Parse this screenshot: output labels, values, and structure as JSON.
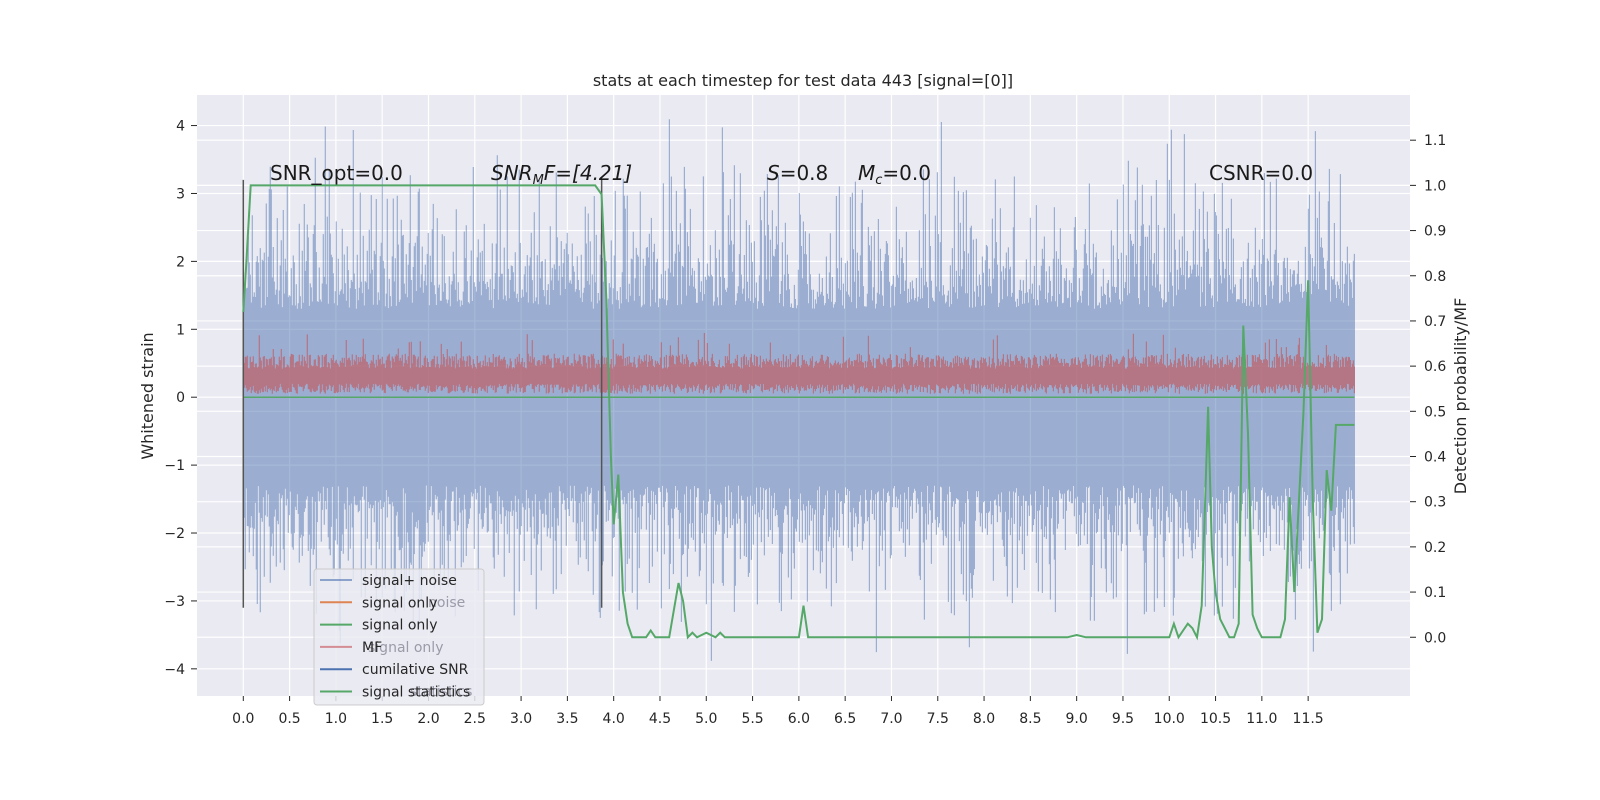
{
  "chart_data": {
    "type": "line",
    "title": "stats at each timestep for test data 443 [signal=[0]]",
    "ylabel_left": "Whitened strain",
    "ylabel_right": "Detection probability/MF",
    "xlim": [
      -0.5,
      12.6
    ],
    "ylim_left": [
      -4.4,
      4.45
    ],
    "ylim_right": [
      -0.13,
      1.2
    ],
    "x_ticks": [
      "0.0",
      "0.5",
      "1.0",
      "1.5",
      "2.0",
      "2.5",
      "3.0",
      "3.5",
      "4.0",
      "4.5",
      "5.0",
      "5.5",
      "6.0",
      "6.5",
      "7.0",
      "7.5",
      "8.0",
      "8.5",
      "9.0",
      "9.5",
      "10.0",
      "10.5",
      "11.0",
      "11.5"
    ],
    "y_ticks_left": [
      "4",
      "3",
      "2",
      "1",
      "0",
      "−1",
      "−2",
      "−3",
      "−4"
    ],
    "y_ticks_right": [
      "1.1",
      "1.0",
      "0.9",
      "0.8",
      "0.7",
      "0.6",
      "0.5",
      "0.4",
      "0.3",
      "0.2",
      "0.1",
      "0.0"
    ],
    "grid": true,
    "legend_position": "lower-left",
    "annotations": {
      "snr_opt": "SNR_opt=0.0",
      "snr_mf_sym": "SNR",
      "snr_mf_sub": "M",
      "snr_mf_rest": "F=[4.21]",
      "s_sym": "S",
      "s_rest": "=0.8",
      "mc_sym": "M",
      "mc_sub": "c",
      "mc_rest": "=0.0",
      "csnr": "CSNR=0.0"
    },
    "vertical_markers": [
      {
        "x": 0.0,
        "y": [
          -3.1,
          3.2
        ]
      },
      {
        "x": 3.87,
        "y": [
          -3.1,
          3.2
        ]
      }
    ],
    "series": [
      {
        "name": "signal+ noise",
        "color": "#4c72b0",
        "alpha": 0.5,
        "axis": "left",
        "description": "whitened noise spanning ~-2.5 to 2.6, spikes to ~4.1 / -4.0",
        "x_range": [
          0.0,
          12.0
        ]
      },
      {
        "name": "signal only",
        "color": "#dd8452",
        "axis": "left",
        "values": [
          0,
          0
        ]
      },
      {
        "name": "signal only",
        "color": "#55a868",
        "axis": "left",
        "values": [
          0,
          0
        ]
      },
      {
        "name": "MF",
        "color": "#c44e52",
        "alpha": 0.6,
        "axis": "left",
        "description": "matched-filter output ~0.05 to 0.65 with peaks ~0.9"
      },
      {
        "name": "cumilative SNR",
        "color": "#4c72b0",
        "axis": "right"
      },
      {
        "name": "signal statistics",
        "color": "#55a868",
        "axis": "right",
        "x": [
          0.0,
          0.03,
          0.08,
          0.2,
          0.5,
          1.0,
          2.0,
          3.0,
          3.5,
          3.8,
          3.87,
          3.92,
          3.97,
          4.0,
          4.05,
          4.1,
          4.15,
          4.2,
          4.25,
          4.3,
          4.35,
          4.4,
          4.45,
          4.5,
          4.6,
          4.7,
          4.75,
          4.8,
          4.85,
          4.9,
          5.0,
          5.1,
          5.15,
          5.2,
          5.3,
          5.5,
          5.8,
          6.0,
          6.05,
          6.1,
          6.15,
          6.3,
          6.6,
          7.0,
          7.5,
          8.0,
          8.5,
          8.9,
          9.0,
          9.1,
          9.3,
          9.5,
          9.7,
          9.9,
          10.0,
          10.05,
          10.1,
          10.15,
          10.2,
          10.25,
          10.3,
          10.35,
          10.38,
          10.42,
          10.46,
          10.5,
          10.55,
          10.6,
          10.65,
          10.7,
          10.75,
          10.8,
          10.85,
          10.9,
          10.95,
          11.0,
          11.1,
          11.2,
          11.25,
          11.3,
          11.35,
          11.4,
          11.45,
          11.5,
          11.55,
          11.6,
          11.65,
          11.7,
          11.75,
          11.8,
          11.85,
          11.9,
          11.95,
          12.0
        ],
        "y": [
          0.72,
          0.82,
          1.0,
          1.0,
          1.0,
          1.0,
          1.0,
          1.0,
          1.0,
          1.0,
          0.98,
          0.75,
          0.4,
          0.25,
          0.36,
          0.1,
          0.03,
          0.0,
          0.0,
          0.0,
          0.0,
          0.015,
          0.0,
          0.0,
          0.0,
          0.12,
          0.08,
          0.0,
          0.01,
          0.0,
          0.01,
          0.0,
          0.01,
          0.0,
          0.0,
          0.0,
          0.0,
          0.0,
          0.07,
          0.0,
          0.0,
          0.0,
          0.0,
          0.0,
          0.0,
          0.0,
          0.0,
          0.0,
          0.005,
          0.0,
          0.0,
          0.0,
          0.0,
          0.0,
          0.0,
          0.03,
          0.0,
          0.015,
          0.03,
          0.02,
          0.0,
          0.07,
          0.25,
          0.51,
          0.2,
          0.1,
          0.04,
          0.02,
          0.0,
          0.0,
          0.03,
          0.69,
          0.45,
          0.05,
          0.02,
          0.0,
          0.0,
          0.0,
          0.04,
          0.31,
          0.1,
          0.3,
          0.5,
          0.79,
          0.3,
          0.01,
          0.04,
          0.37,
          0.28,
          0.47,
          0.47,
          0.47,
          0.47,
          0.47
        ]
      }
    ],
    "legend_ghost": [
      "noise",
      "signal only",
      "statistics"
    ]
  }
}
